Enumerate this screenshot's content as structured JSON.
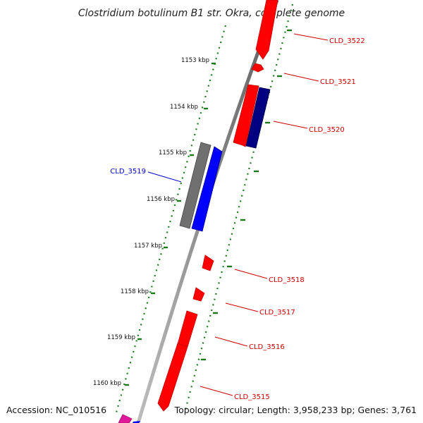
{
  "title": "Clostridium botulinum B1 str. Okra, complete genome",
  "accession": "Accession: NC_010516",
  "topology": "Topology: circular; Length: 3,958,233 bp; Genes: 3,761",
  "colors": {
    "forward_gene": "#ff0000",
    "reverse_gene": "#ff0000",
    "blue_gene": "#0000ff",
    "navy_gene": "#000080",
    "grey_feature": "#707070",
    "backbone": "#8c8c8c",
    "tick_green": "#1a7a1a",
    "label_red": "#cc0000",
    "label_blue": "#0000cc",
    "magenta_gene": "#e0189a"
  },
  "kbp_labels": [
    "1153 kbp",
    "1154 kbp",
    "1155 kbp",
    "1156 kbp",
    "1157 kbp",
    "1158 kbp",
    "1159 kbp",
    "1160 kbp"
  ],
  "gene_labels": [
    "CLD_3522",
    "CLD_3521",
    "CLD_3520",
    "CLD_3519",
    "CLD_3518",
    "CLD_3517",
    "CLD_3516",
    "CLD_3515"
  ]
}
